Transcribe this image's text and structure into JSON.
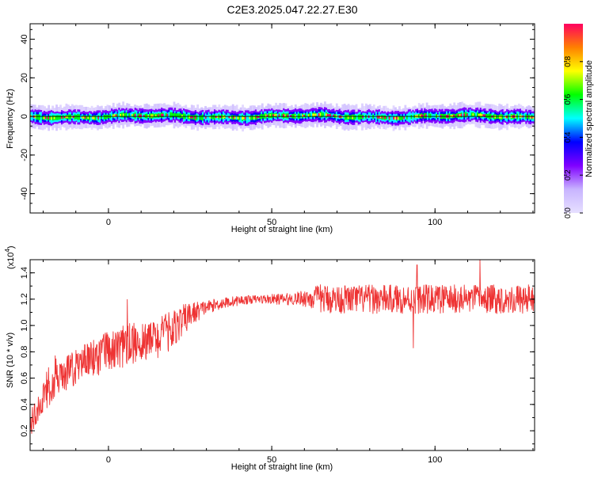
{
  "title": "C2E3.2025.047.22.27.E30",
  "chart_data": [
    {
      "type": "heatmap",
      "xlabel": "Height of straight line (km)",
      "ylabel": "Frequency (Hz)",
      "xlim": [
        -24,
        130.5
      ],
      "ylim": [
        -50,
        48
      ],
      "xticks": [
        0,
        50,
        100
      ],
      "yticks": [
        40,
        20,
        0,
        -20,
        -40
      ],
      "band_center_hz": 0,
      "band_halfwidth_hz": 3.5,
      "colorbar": {
        "label": "Normalized spectral amplitude",
        "range": [
          0,
          1
        ],
        "ticks": [
          "0.0",
          "0.2",
          "0.4",
          "0.6",
          "0.8"
        ],
        "colors": [
          "#e6e0ff",
          "#c8b4ff",
          "#8000ff",
          "#0000ff",
          "#00ffff",
          "#00ff00",
          "#ffff00",
          "#ff8000",
          "#ff0060"
        ]
      }
    },
    {
      "type": "line",
      "xlabel": "Height of straight line (km)",
      "ylabel": "SNR (10 * v/v)",
      "y_multiplier_label": "(x10",
      "y_multiplier_exp": "4",
      "xlim": [
        -24,
        130.5
      ],
      "ylim": [
        0.05,
        1.5
      ],
      "xticks": [
        0,
        50,
        100
      ],
      "yticks": [
        0.2,
        0.4,
        0.6,
        0.8,
        1.0,
        1.2,
        1.4
      ],
      "color": "#ee3333",
      "trend": {
        "x": [
          -24,
          -20,
          -15,
          -10,
          -5,
          0,
          5,
          10,
          15,
          20,
          25,
          30,
          35,
          40,
          45,
          50,
          55,
          60,
          70,
          80,
          90,
          100,
          110,
          120,
          130.5
        ],
        "y": [
          0.25,
          0.45,
          0.6,
          0.68,
          0.75,
          0.8,
          0.85,
          0.88,
          0.9,
          0.98,
          1.08,
          1.14,
          1.17,
          1.19,
          1.2,
          1.2,
          1.2,
          1.21,
          1.2,
          1.2,
          1.2,
          1.2,
          1.2,
          1.2,
          1.2
        ]
      },
      "noise_amplitude": {
        "x": [
          -24,
          0,
          20,
          30,
          45,
          58,
          65,
          130.5
        ],
        "y": [
          0.1,
          0.16,
          0.15,
          0.05,
          0.03,
          0.05,
          0.11,
          0.11
        ]
      },
      "spikes": [
        {
          "x": 93.4,
          "y": 0.83
        },
        {
          "x": 94.5,
          "y": 1.46
        },
        {
          "x": 113.8,
          "y": 1.5
        }
      ]
    }
  ]
}
